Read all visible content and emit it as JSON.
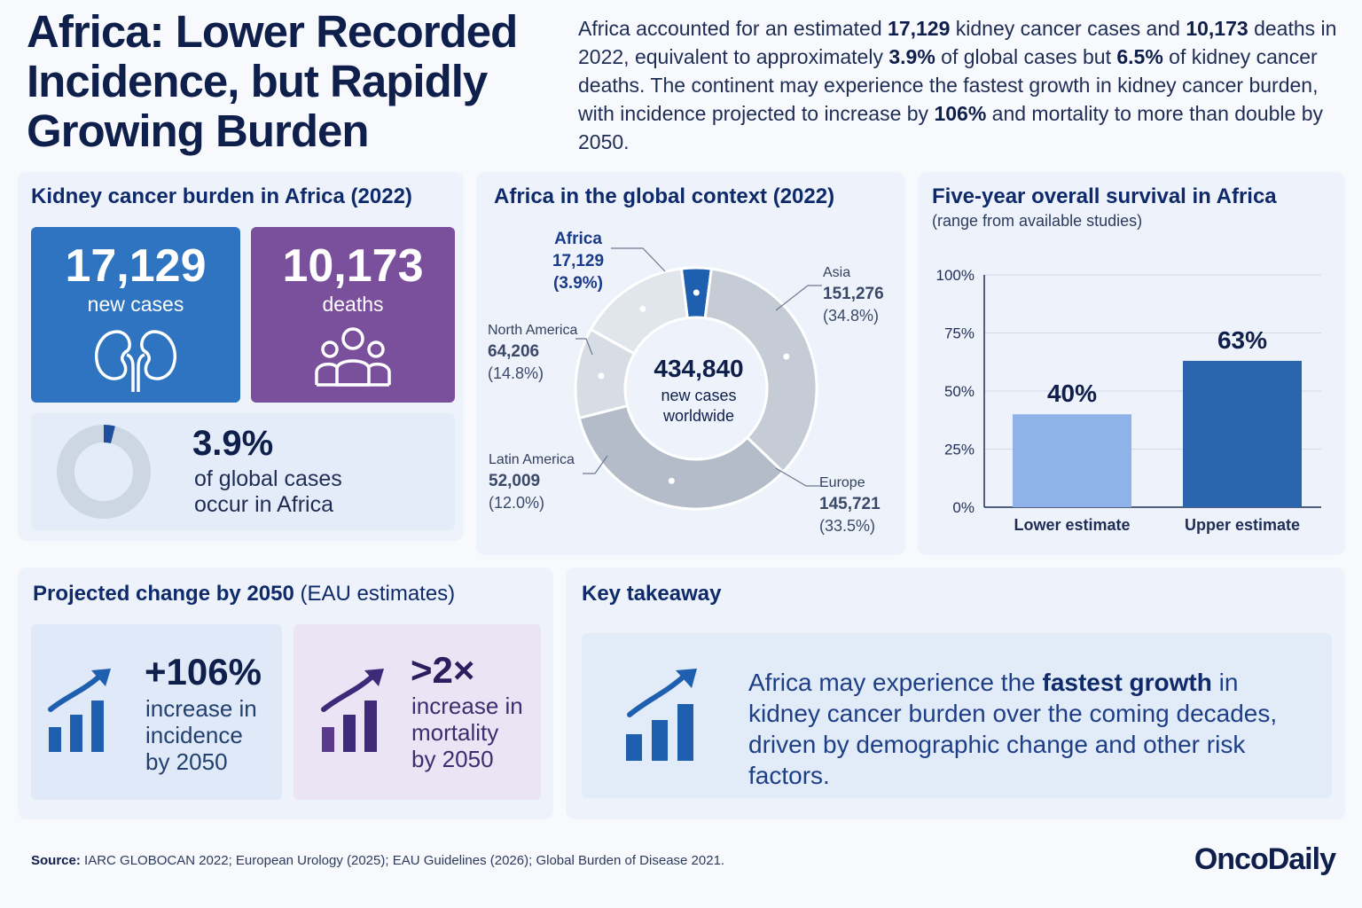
{
  "header": {
    "title": "Africa: Lower Recorded Incidence, but Rapidly Growing Burden",
    "intro": [
      {
        "t": "Africa accounted for an estimated ",
        "b": false
      },
      {
        "t": "17,129",
        "b": true
      },
      {
        "t": " kidney cancer cases and ",
        "b": false
      },
      {
        "t": "10,173",
        "b": true
      },
      {
        "t": " deaths in 2022, equivalent to approximately ",
        "b": false
      },
      {
        "t": "3.9%",
        "b": true
      },
      {
        "t": " of global cases but ",
        "b": false
      },
      {
        "t": "6.5%",
        "b": true
      },
      {
        "t": " of kidney cancer deaths. The continent may experience the fastest growth in kidney cancer burden, with incidence projected to increase by ",
        "b": false
      },
      {
        "t": "106%",
        "b": true
      },
      {
        "t": " and mortality to more than double by 2050.",
        "b": false
      }
    ]
  },
  "burden": {
    "title": "Kidney cancer burden in Africa (2022)",
    "cases_value": "17,129",
    "cases_label": "new cases",
    "deaths_value": "10,173",
    "deaths_label": "deaths",
    "share_value": "3.9%",
    "share_line1": "of global cases",
    "share_line2": "occur in Africa",
    "share_fraction": 0.039,
    "colors": {
      "cases": "#2f74c0",
      "deaths": "#7a4f9c"
    }
  },
  "global": {
    "title": "Africa in the global context (2022)",
    "center_value": "434,840",
    "center_line1": "new cases",
    "center_line2": "worldwide",
    "labels": {
      "africa": {
        "name": "Africa",
        "value": "17,129",
        "pct": "(3.9%)"
      },
      "asia": {
        "name": "Asia",
        "value": "151,276",
        "pct": "(34.8%)"
      },
      "north_america": {
        "name": "North America",
        "value": "64,206",
        "pct": "(14.8%)"
      },
      "latin_america": {
        "name": "Latin America",
        "value": "52,009",
        "pct": "(12.0%)"
      },
      "europe": {
        "name": "Europe",
        "value": "145,721",
        "pct": "(33.5%)"
      }
    }
  },
  "survival": {
    "title": "Five-year overall survival in Africa",
    "subtitle": "(range from available studies)",
    "value_labels": [
      "40%",
      "63%"
    ],
    "yticks": [
      "100%",
      "75%",
      "50%",
      "25%",
      "0%"
    ]
  },
  "projection": {
    "title_bold": "Projected change by 2050",
    "title_rest": " (EAU estimates)",
    "incidence_value": "+106%",
    "incidence_lines": [
      "increase in",
      "incidence",
      "by 2050"
    ],
    "mortality_value": ">2×",
    "mortality_lines": [
      "increase in",
      "mortality",
      "by 2050"
    ]
  },
  "takeaway": {
    "title": "Key takeaway",
    "pre": "Africa may experience the ",
    "bold": "fastest growth",
    "post": " in kidney cancer burden over the coming decades, driven by demographic change and other risk factors."
  },
  "footer": {
    "source_label": "Source:",
    "source_text": " IARC GLOBOCAN 2022; European Urology (2025); EAU Guidelines (2026); Global Burden of Disease 2021.",
    "logo": "OncoDaily"
  },
  "chart_data": [
    {
      "type": "pie",
      "title": "Africa in the global context (2022)",
      "categories": [
        "Africa",
        "Asia",
        "Europe",
        "Latin America",
        "North America"
      ],
      "values": [
        17129,
        151276,
        145721,
        52009,
        64206
      ],
      "percent": [
        3.9,
        34.8,
        33.5,
        12.0,
        14.8
      ],
      "colors": [
        "#1f5fb0",
        "#c5ccd6",
        "#b3bcc8",
        "#d7dde5",
        "#e1e6ec"
      ],
      "total": 434840
    },
    {
      "type": "bar",
      "title": "Five-year overall survival in Africa",
      "categories": [
        "Lower estimate",
        "Upper estimate"
      ],
      "values": [
        40,
        63
      ],
      "ylim": [
        0,
        100
      ],
      "colors": [
        "#8fb3e8",
        "#2b65ad"
      ],
      "grid": true
    }
  ]
}
